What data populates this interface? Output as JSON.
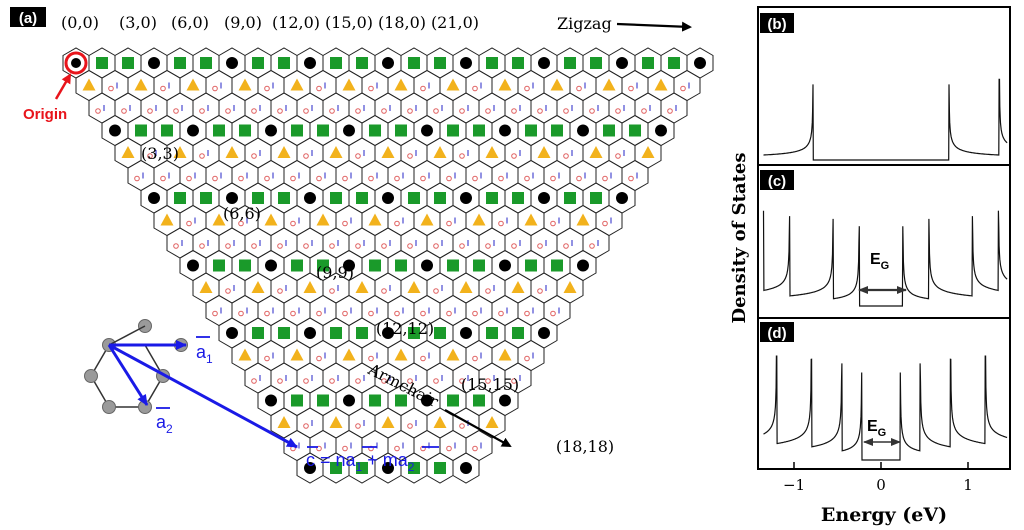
{
  "panel_a": {
    "panel_label": "(a)",
    "zigzag_indices": [
      "(0,0)",
      "(3,0)",
      "(6,0)",
      "(9,0)",
      "(12,0)",
      "(15,0)",
      "(18,0)",
      "(21,0)"
    ],
    "zigzag_label": "Zigzag",
    "armchair_indices": [
      "(3,3)",
      "(6,6)",
      "(9,9)",
      "(12,12)",
      "(15,15)",
      "(18,18)"
    ],
    "armchair_label": "Armchair",
    "origin_label": "Origin",
    "lattice_vectors": {
      "a1": "a",
      "a1_sub": "1",
      "a2": "a",
      "a2_sub": "2",
      "chiral_c": "c",
      "chiral_eq": " = na",
      "chiral_sub1": "1",
      "chiral_plus": " + ma",
      "chiral_sub2": "2"
    },
    "colors": {
      "origin": "#e8141b",
      "vector": "#1a1ae6",
      "metallic_circle": "#000000",
      "triangle": "#f2b21c",
      "square": "#1a9a2a"
    }
  },
  "dos_panels": {
    "b_label": "(b)",
    "c_label": "(c)",
    "d_label": "(d)",
    "gap_label": "E",
    "gap_sub": "G",
    "y_axis_label": "Density of States",
    "x_axis_label": "Energy (eV)",
    "x_ticks": [
      "−1",
      "0",
      "1"
    ]
  }
}
